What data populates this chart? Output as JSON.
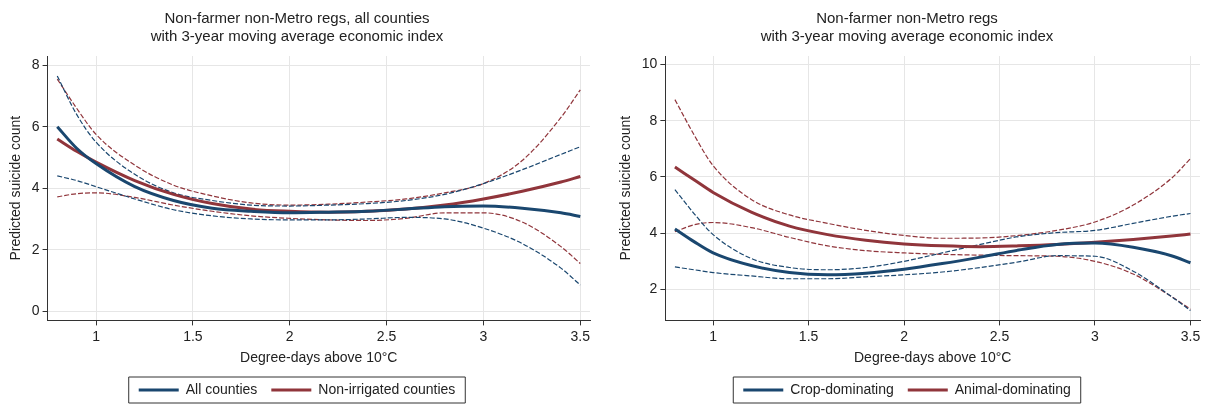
{
  "chart_data": [
    {
      "type": "line",
      "title": "Non-farmer non-Metro regs, all counties\nwith 3-year moving average economic index",
      "xlabel": "Degree-days above 10°C",
      "ylabel": "Predicted suicide count",
      "x": [
        0.8,
        0.9,
        1.0,
        1.2,
        1.4,
        1.6,
        1.8,
        2.0,
        2.2,
        2.4,
        2.6,
        2.8,
        3.0,
        3.2,
        3.4,
        3.5
      ],
      "xlim": [
        0.75,
        3.55
      ],
      "xticks": [
        1,
        1.5,
        2,
        2.5,
        3,
        3.5
      ],
      "ylim": [
        -0.3,
        8.3
      ],
      "yticks": [
        0,
        2,
        4,
        6,
        8
      ],
      "grid": true,
      "legend": "bottom",
      "line_style": "solid",
      "marker": "none",
      "series": [
        {
          "name": "All counties",
          "color": "#1a476f",
          "values": [
            6.0,
            5.3,
            4.8,
            4.05,
            3.6,
            3.35,
            3.25,
            3.2,
            3.22,
            3.25,
            3.32,
            3.4,
            3.42,
            3.35,
            3.2,
            3.08
          ]
        },
        {
          "name": "Non-irrigated counties",
          "color": "#90353b",
          "values": [
            5.6,
            5.2,
            4.85,
            4.25,
            3.8,
            3.5,
            3.32,
            3.25,
            3.22,
            3.25,
            3.32,
            3.45,
            3.65,
            3.9,
            4.2,
            4.38
          ]
        },
        {
          "color": "#1a476f",
          "line_style": "dashed",
          "values": [
            4.4,
            4.25,
            4.05,
            3.65,
            3.3,
            3.1,
            3.0,
            2.97,
            2.97,
            3.0,
            3.05,
            3.0,
            2.7,
            2.2,
            1.4,
            0.85
          ]
        },
        {
          "color": "#1a476f",
          "line_style": "dashed",
          "values": [
            7.65,
            6.4,
            5.5,
            4.45,
            3.85,
            3.6,
            3.45,
            3.42,
            3.45,
            3.5,
            3.6,
            3.8,
            4.15,
            4.6,
            5.1,
            5.35
          ]
        },
        {
          "color": "#90353b",
          "line_style": "dashed",
          "values": [
            3.72,
            3.82,
            3.85,
            3.7,
            3.45,
            3.25,
            3.1,
            3.02,
            2.97,
            2.95,
            3.02,
            3.2,
            3.2,
            2.9,
            2.1,
            1.55
          ]
        },
        {
          "color": "#90353b",
          "line_style": "dashed",
          "values": [
            7.55,
            6.6,
            5.75,
            4.75,
            4.1,
            3.75,
            3.52,
            3.45,
            3.48,
            3.55,
            3.65,
            3.85,
            4.15,
            4.9,
            6.3,
            7.2
          ]
        }
      ]
    },
    {
      "type": "line",
      "title": "Non-farmer non-Metro regs\nwith 3-year moving average economic index",
      "xlabel": "Degree-days above 10°C",
      "ylabel": "Predicted suicide count",
      "x": [
        0.8,
        0.9,
        1.0,
        1.2,
        1.4,
        1.6,
        1.8,
        2.0,
        2.2,
        2.4,
        2.6,
        2.8,
        3.0,
        3.2,
        3.4,
        3.5
      ],
      "xlim": [
        0.75,
        3.55
      ],
      "xticks": [
        1,
        1.5,
        2,
        2.5,
        3,
        3.5
      ],
      "ylim": [
        0.9,
        10.3
      ],
      "yticks": [
        2,
        4,
        6,
        8,
        10
      ],
      "grid": true,
      "legend": "bottom",
      "line_style": "solid",
      "marker": "none",
      "series": [
        {
          "name": "Crop-dominating",
          "color": "#1a476f",
          "values": [
            4.15,
            3.7,
            3.3,
            2.85,
            2.6,
            2.52,
            2.58,
            2.72,
            2.92,
            3.15,
            3.4,
            3.6,
            3.65,
            3.5,
            3.2,
            2.95
          ]
        },
        {
          "name": "Animal-dominating",
          "color": "#90353b",
          "values": [
            6.35,
            5.9,
            5.45,
            4.75,
            4.25,
            3.95,
            3.75,
            3.62,
            3.55,
            3.52,
            3.55,
            3.6,
            3.68,
            3.78,
            3.9,
            3.97
          ]
        },
        {
          "color": "#1a476f",
          "line_style": "dashed",
          "values": [
            2.8,
            2.7,
            2.6,
            2.48,
            2.38,
            2.38,
            2.45,
            2.52,
            2.62,
            2.78,
            2.98,
            3.2,
            3.18,
            2.65,
            1.75,
            1.25
          ]
        },
        {
          "color": "#1a476f",
          "line_style": "dashed",
          "values": [
            5.55,
            4.7,
            3.95,
            3.1,
            2.78,
            2.7,
            2.78,
            3.0,
            3.3,
            3.6,
            3.88,
            4.02,
            4.1,
            4.35,
            4.6,
            4.7
          ]
        },
        {
          "color": "#90353b",
          "line_style": "dashed",
          "values": [
            4.05,
            4.3,
            4.38,
            4.2,
            3.85,
            3.55,
            3.38,
            3.3,
            3.25,
            3.22,
            3.2,
            3.18,
            3.0,
            2.55,
            1.75,
            1.3
          ]
        },
        {
          "color": "#90353b",
          "line_style": "dashed",
          "values": [
            8.75,
            7.5,
            6.4,
            5.2,
            4.65,
            4.35,
            4.1,
            3.92,
            3.82,
            3.83,
            3.92,
            4.1,
            4.4,
            5.0,
            5.95,
            6.65
          ]
        }
      ]
    }
  ]
}
